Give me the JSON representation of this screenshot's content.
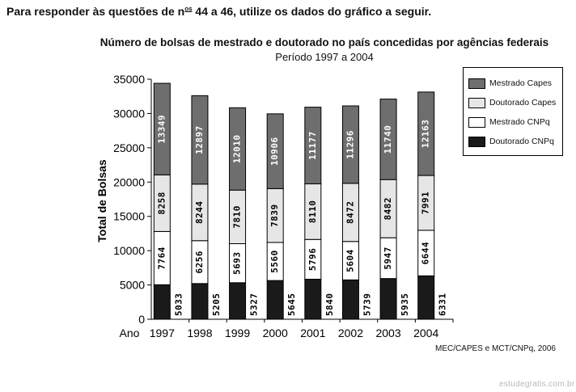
{
  "intro": {
    "text_before": "Para responder às questões de n",
    "superscript": "os",
    "text_after": " 44 a 46, utilize os dados do gráfico a seguir."
  },
  "source": "MEC/CAPES e MCT/CNPq, 2006",
  "watermark": "estudegratis.com.br",
  "chart_data": {
    "type": "bar",
    "stacked": true,
    "title": "Número de bolsas de mestrado e doutorado no país concedidas  por agências federais",
    "subtitle": "Período 1997 a 2004",
    "ylabel": "Total de Bolsas",
    "xlabel": "Ano",
    "ylim": [
      0,
      35000
    ],
    "yticks": [
      0,
      5000,
      10000,
      15000,
      20000,
      25000,
      30000,
      35000
    ],
    "categories": [
      "1997",
      "1998",
      "1999",
      "2000",
      "2001",
      "2002",
      "2003",
      "2004"
    ],
    "series": [
      {
        "name": "Doutorado CNPq",
        "color": "#1a1a1a",
        "values": [
          5033,
          5205,
          5327,
          5645,
          5840,
          5739,
          5935,
          6331
        ]
      },
      {
        "name": "Mestrado CNPq",
        "color": "#ffffff",
        "values": [
          7764,
          6256,
          5693,
          5560,
          5796,
          5604,
          5947,
          6644
        ]
      },
      {
        "name": "Doutorado Capes",
        "color": "#e6e6e6",
        "values": [
          8258,
          8244,
          7810,
          7839,
          8110,
          8472,
          8482,
          7991
        ]
      },
      {
        "name": "Mestrado Capes",
        "color": "#6e6e6e",
        "values": [
          13349,
          12897,
          12010,
          10906,
          11177,
          11296,
          11740,
          12163
        ]
      }
    ],
    "legend_order": [
      "Mestrado Capes",
      "Doutorado Capes",
      "Mestrado CNPq",
      "Doutorado CNPq"
    ],
    "legend_position": "right",
    "grid": false
  }
}
